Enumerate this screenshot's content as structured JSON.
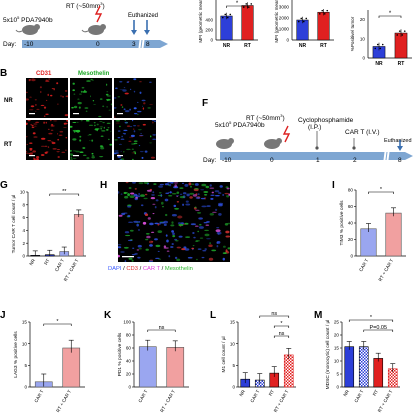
{
  "panel_labels": {
    "B": "B",
    "F": "F",
    "G": "G",
    "H": "H",
    "I": "I",
    "J": "J",
    "K": "K",
    "L": "L",
    "M": "M"
  },
  "timeline_a": {
    "cells": "5x10",
    "cells_sup": "5",
    "cells_line": "PDA7940b",
    "day": "Day:",
    "rt": "RT (~50mm",
    "rt_sup": "3",
    "rt_end": ")",
    "euth": "Euthanized",
    "ticks": [
      "-10",
      "0",
      "3",
      "8"
    ]
  },
  "timeline_f": {
    "cells": "5x10",
    "cells_sup": "5",
    "cells_line": "PDA7940b",
    "day": "Day:",
    "rt": "RT (~50mm",
    "rt_sup": "3",
    "rt_end": ")",
    "cyclo": "Cyclophosphamide",
    "cyclo_route": "(I.P.)",
    "cart": "CAR T (I.V.)",
    "euth": "Euthanized",
    "ticks": [
      "-10",
      "0",
      "1",
      "2",
      "8"
    ]
  },
  "panel_b": {
    "col_headers": [
      "CD31",
      "Mesothelin",
      ""
    ],
    "row_labels": [
      "NR",
      "RT"
    ]
  },
  "panel_h": {
    "legend": [
      {
        "text": "DAPI",
        "color": "#3b5bff"
      },
      {
        "text": "CD3",
        "color": "#e03030"
      },
      {
        "text": "CAR T",
        "color": "#e040e0"
      },
      {
        "text": "Mesothelin",
        "color": "#2fb830"
      }
    ],
    "sep": " / "
  },
  "top_charts": [
    {
      "ylabel": "MFI (geometric mean)",
      "ticks": [
        "400",
        "200",
        "0"
      ],
      "categories": [
        "NR",
        "RT"
      ],
      "sig": "*"
    },
    {
      "ylabel": "MFI (geometric mean)",
      "ticks": [
        "3000",
        "2000",
        "1000",
        "0"
      ],
      "categories": [
        "NR",
        "RT"
      ],
      "sig": ""
    },
    {
      "ylabel": "%Positive/ tumor",
      "ticks": [
        "20",
        "10",
        "0"
      ],
      "categories": [
        "NR",
        "RT"
      ],
      "sig": "*"
    }
  ],
  "chart_data": [
    {
      "id": "top1",
      "type": "bar",
      "categories": [
        "NR",
        "RT"
      ],
      "values": [
        480,
        690
      ],
      "ylim": [
        0,
        800
      ],
      "ylabel": "MFI (geometric mean)"
    },
    {
      "id": "top2",
      "type": "bar",
      "categories": [
        "NR",
        "RT"
      ],
      "values": [
        1800,
        2500
      ],
      "ylim": [
        0,
        3600
      ],
      "ylabel": "MFI (geometric mean)"
    },
    {
      "id": "top3",
      "type": "bar",
      "categories": [
        "NR",
        "RT"
      ],
      "values": [
        6,
        13
      ],
      "ylim": [
        0,
        25
      ],
      "ylabel": "%Positive/ tumor"
    },
    {
      "id": "G",
      "type": "bar",
      "title": "",
      "ylabel": "Tumor CAR T cell count / µl",
      "categories": [
        "NR",
        "RT",
        "CAR T",
        "RT + CAR T"
      ],
      "values": [
        0.1,
        0.2,
        0.7,
        6.5
      ],
      "ylim": [
        0,
        10
      ],
      "yticks": [
        "0",
        "2",
        "4",
        "6",
        "8",
        "10"
      ],
      "sig": [
        "**"
      ]
    },
    {
      "id": "I",
      "type": "bar",
      "ylabel": "TIM3 % positive cells",
      "categories": [
        "CAR T",
        "RT + CAR T"
      ],
      "values": [
        33,
        52
      ],
      "ylim": [
        0,
        80
      ],
      "yticks": [
        "0",
        "20",
        "40",
        "60",
        "80"
      ],
      "sig": [
        "*"
      ]
    },
    {
      "id": "J",
      "type": "bar",
      "ylabel": "LAG3 % positive cells",
      "categories": [
        "CAR T",
        "RT + CAR T"
      ],
      "values": [
        1.2,
        9
      ],
      "ylim": [
        0,
        15
      ],
      "yticks": [
        "0",
        "5",
        "10",
        "15"
      ],
      "sig": [
        "*"
      ]
    },
    {
      "id": "K",
      "type": "bar",
      "ylabel": "PD1 % positive cells",
      "categories": [
        "CAR T",
        "RT + CAR T"
      ],
      "values": [
        62,
        61
      ],
      "ylim": [
        0,
        100
      ],
      "yticks": [
        "0",
        "20",
        "40",
        "60",
        "80",
        "100"
      ],
      "sig": [
        "ns"
      ]
    },
    {
      "id": "L",
      "type": "bar",
      "ylabel": "M1 cell count / µl",
      "categories": [
        "NR",
        "CAR T",
        "RT",
        "RT + CAR T"
      ],
      "values": [
        1.8,
        1.6,
        3.2,
        7.4
      ],
      "ylim": [
        0,
        15
      ],
      "yticks": [
        "0",
        "5",
        "10",
        "15"
      ],
      "sig": [
        "ns",
        "*",
        "ns"
      ]
    },
    {
      "id": "M",
      "type": "bar",
      "ylabel": "MDSC (monocytic) cell count / µl",
      "categories": [
        "NR",
        "CAR T",
        "RT",
        "RT + CAR T"
      ],
      "values": [
        15.5,
        15.5,
        11,
        7
      ],
      "ylim": [
        0,
        25
      ],
      "yticks": [
        "0",
        "5",
        "10",
        "15",
        "20",
        "25"
      ],
      "sig": [
        "*",
        "P=0.05"
      ]
    }
  ]
}
